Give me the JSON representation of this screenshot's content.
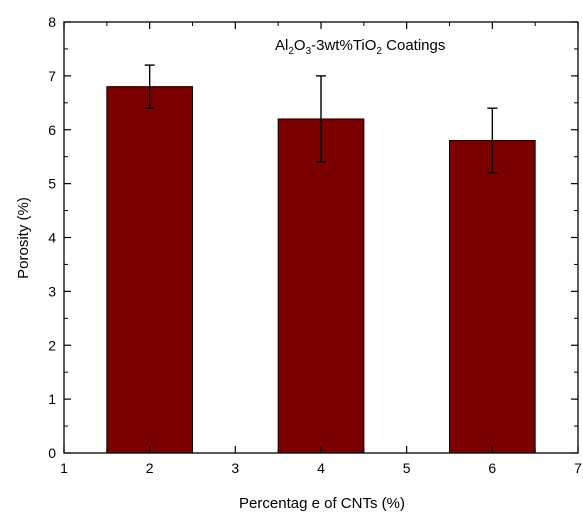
{
  "chart_data": {
    "type": "bar",
    "title": "",
    "annotation": {
      "main": "Al",
      "sub1": "2",
      "mid1": "O",
      "sub2": "3",
      "mid2": "-3wt%TiO",
      "sub3": "2",
      "tail": " Coatings"
    },
    "xlabel": "Percentag e of CNTs (%)",
    "ylabel": "Porosity (%)",
    "xlim": [
      1,
      7
    ],
    "ylim": [
      0,
      8
    ],
    "xticks": [
      1,
      2,
      3,
      4,
      5,
      6,
      7
    ],
    "yticks": [
      0,
      1,
      2,
      3,
      4,
      5,
      6,
      7,
      8
    ],
    "x": [
      2,
      4,
      6
    ],
    "values": [
      6.8,
      6.2,
      5.8
    ],
    "errors": [
      0.4,
      0.8,
      0.6
    ],
    "bar_width": 1.0,
    "grid": false,
    "bar_color": "#7b0000",
    "bar_edge_color": "#000000"
  }
}
